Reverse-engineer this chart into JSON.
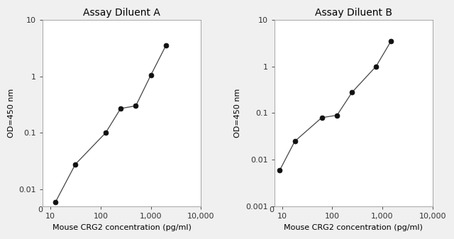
{
  "panel_A": {
    "title": "Assay Diluent A",
    "x": [
      12.5,
      31.25,
      125,
      250,
      500,
      1000,
      2000
    ],
    "y": [
      0.006,
      0.028,
      0.1,
      0.27,
      0.3,
      1.05,
      3.5
    ],
    "xlim_log": [
      0.845,
      4.0
    ],
    "ylim": [
      0.005,
      10
    ],
    "xticks": [
      10,
      100,
      1000,
      10000
    ],
    "xtick_labels": [
      "10",
      "100",
      "1,000",
      "10,000"
    ],
    "yticks": [
      0.01,
      0.1,
      1,
      10
    ],
    "ytick_labels": [
      "0.01",
      "0.1",
      "1",
      "10"
    ],
    "xlabel": "Mouse CRG2 concentration (pg/ml)",
    "ylabel": "OD=450 nm"
  },
  "panel_B": {
    "title": "Assay Diluent B",
    "x": [
      9,
      18,
      62,
      125,
      250,
      750,
      1500
    ],
    "y": [
      0.006,
      0.025,
      0.08,
      0.09,
      0.28,
      1.0,
      3.5
    ],
    "xlim_log": [
      0.845,
      4.0
    ],
    "ylim": [
      0.001,
      10
    ],
    "xticks": [
      10,
      100,
      1000,
      10000
    ],
    "xtick_labels": [
      "10",
      "100",
      "1,000",
      "10,000"
    ],
    "yticks": [
      0.001,
      0.01,
      0.1,
      1,
      10
    ],
    "ytick_labels": [
      "0.001",
      "0.01",
      "0.1",
      "1",
      "10"
    ],
    "xlabel": "Mouse CRG2 concentration (pg/ml)",
    "ylabel": "OD=450 nm"
  },
  "line_color": "#444444",
  "marker_color": "#111111",
  "marker_size": 5,
  "bg_color": "#f0f0f0",
  "title_fontsize": 10,
  "label_fontsize": 8,
  "tick_fontsize": 8
}
